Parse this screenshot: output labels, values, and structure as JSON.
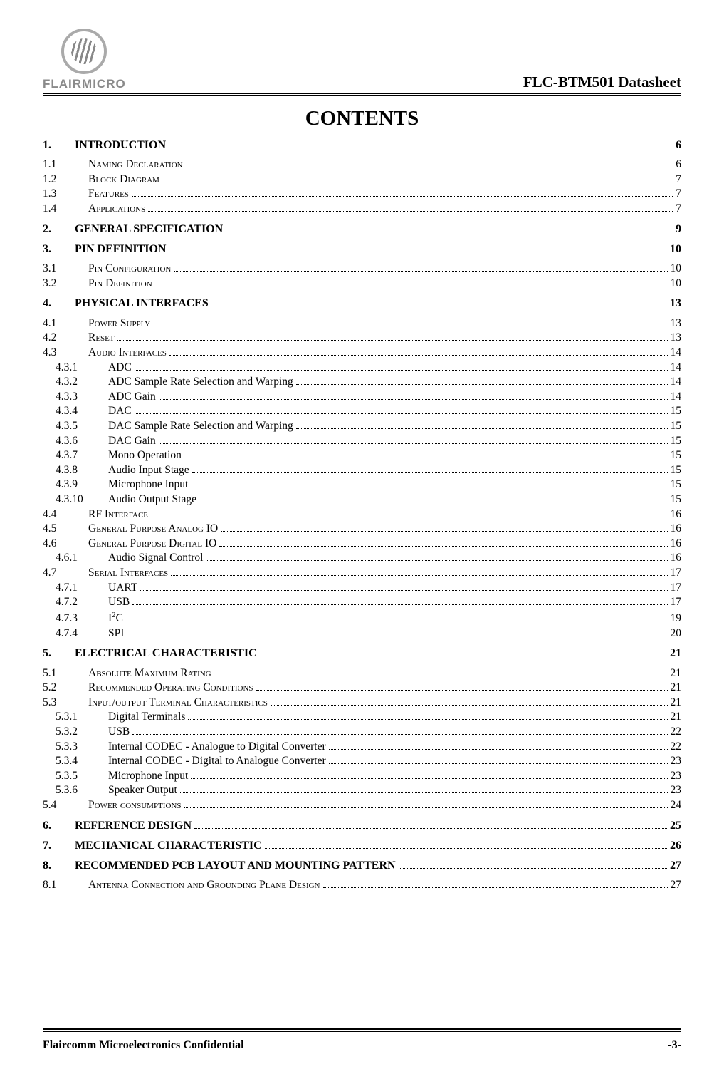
{
  "header": {
    "logo_text": "FLAIRMICRO",
    "doc_title": "FLC-BTM501 Datasheet"
  },
  "contents_heading": "CONTENTS",
  "footer": {
    "left": "Flaircomm Microelectronics Confidential",
    "right": "-3-"
  },
  "toc": [
    {
      "level": 1,
      "num": "1.",
      "title": "INTRODUCTION",
      "page": "6"
    },
    {
      "level": 2,
      "num": "1.1",
      "title": "Naming Declaration",
      "page": "6"
    },
    {
      "level": 2,
      "num": "1.2",
      "title": "Block Diagram",
      "page": "7"
    },
    {
      "level": 2,
      "num": "1.3",
      "title": "Features",
      "page": "7"
    },
    {
      "level": 2,
      "num": "1.4",
      "title": "Applications",
      "page": "7"
    },
    {
      "level": 1,
      "num": "2.",
      "title": "GENERAL SPECIFICATION",
      "page": "9"
    },
    {
      "level": 1,
      "num": "3.",
      "title": "PIN DEFINITION",
      "page": "10"
    },
    {
      "level": 2,
      "num": "3.1",
      "title": "Pin Configuration",
      "page": "10"
    },
    {
      "level": 2,
      "num": "3.2",
      "title": "Pin Definition",
      "page": "10"
    },
    {
      "level": 1,
      "num": "4.",
      "title": "PHYSICAL INTERFACES",
      "page": "13"
    },
    {
      "level": 2,
      "num": "4.1",
      "title": "Power Supply",
      "page": "13"
    },
    {
      "level": 2,
      "num": "4.2",
      "title": "Reset",
      "page": "13"
    },
    {
      "level": 2,
      "num": "4.3",
      "title": "Audio Interfaces",
      "page": "14"
    },
    {
      "level": 3,
      "num": "4.3.1",
      "title": "ADC",
      "page": "14"
    },
    {
      "level": 3,
      "num": "4.3.2",
      "title": "ADC Sample Rate Selection and Warping",
      "page": "14"
    },
    {
      "level": 3,
      "num": "4.3.3",
      "title": "ADC Gain",
      "page": "14"
    },
    {
      "level": 3,
      "num": "4.3.4",
      "title": "DAC",
      "page": "15"
    },
    {
      "level": 3,
      "num": "4.3.5",
      "title": "DAC Sample Rate Selection and Warping",
      "page": "15"
    },
    {
      "level": 3,
      "num": "4.3.6",
      "title": "DAC Gain",
      "page": "15"
    },
    {
      "level": 3,
      "num": "4.3.7",
      "title": "Mono Operation",
      "page": "15"
    },
    {
      "level": 3,
      "num": "4.3.8",
      "title": "Audio Input Stage",
      "page": "15"
    },
    {
      "level": 3,
      "num": "4.3.9",
      "title": "Microphone Input",
      "page": "15"
    },
    {
      "level": 3,
      "num": "4.3.10",
      "title": "Audio Output Stage",
      "page": "15"
    },
    {
      "level": 2,
      "num": "4.4",
      "title": "RF Interface",
      "page": "16"
    },
    {
      "level": 2,
      "num": "4.5",
      "title": "General Purpose Analog IO",
      "page": "16"
    },
    {
      "level": 2,
      "num": "4.6",
      "title": "General Purpose Digital IO",
      "page": "16"
    },
    {
      "level": 3,
      "num": "4.6.1",
      "title": "Audio Signal Control",
      "page": "16"
    },
    {
      "level": 2,
      "num": "4.7",
      "title": "Serial Interfaces",
      "page": "17"
    },
    {
      "level": 3,
      "num": "4.7.1",
      "title": "UART",
      "page": "17"
    },
    {
      "level": 3,
      "num": "4.7.2",
      "title": "USB",
      "page": "17"
    },
    {
      "level": 3,
      "num": "4.7.3",
      "title": "I²C",
      "page": "19",
      "raw_html": "I<sup>2</sup>C"
    },
    {
      "level": 3,
      "num": "4.7.4",
      "title": "SPI",
      "page": "20"
    },
    {
      "level": 1,
      "num": "5.",
      "title": "ELECTRICAL CHARACTERISTIC",
      "page": "21"
    },
    {
      "level": 2,
      "num": "5.1",
      "title": "Absolute Maximum Rating",
      "page": "21"
    },
    {
      "level": 2,
      "num": "5.2",
      "title": "Recommended Operating Conditions",
      "page": "21"
    },
    {
      "level": 2,
      "num": "5.3",
      "title": "Input/output Terminal Characteristics",
      "page": "21"
    },
    {
      "level": 3,
      "num": "5.3.1",
      "title": "Digital Terminals",
      "page": "21"
    },
    {
      "level": 3,
      "num": "5.3.2",
      "title": "USB",
      "page": "22"
    },
    {
      "level": 3,
      "num": "5.3.3",
      "title": "Internal CODEC - Analogue to Digital Converter",
      "page": "22"
    },
    {
      "level": 3,
      "num": "5.3.4",
      "title": "Internal CODEC - Digital to Analogue Converter",
      "page": "23"
    },
    {
      "level": 3,
      "num": "5.3.5",
      "title": "Microphone Input",
      "page": "23"
    },
    {
      "level": 3,
      "num": "5.3.6",
      "title": "Speaker Output",
      "page": "23"
    },
    {
      "level": 2,
      "num": "5.4",
      "title": "Power consumptions",
      "page": "24"
    },
    {
      "level": 1,
      "num": "6.",
      "title": "REFERENCE DESIGN",
      "page": "25"
    },
    {
      "level": 1,
      "num": "7.",
      "title": "MECHANICAL CHARACTERISTIC",
      "page": "26"
    },
    {
      "level": 1,
      "num": "8.",
      "title": "RECOMMENDED PCB LAYOUT AND MOUNTING PATTERN",
      "page": "27"
    },
    {
      "level": 2,
      "num": "8.1",
      "title": "Antenna Connection and Grounding Plane Design",
      "page": "27"
    }
  ]
}
